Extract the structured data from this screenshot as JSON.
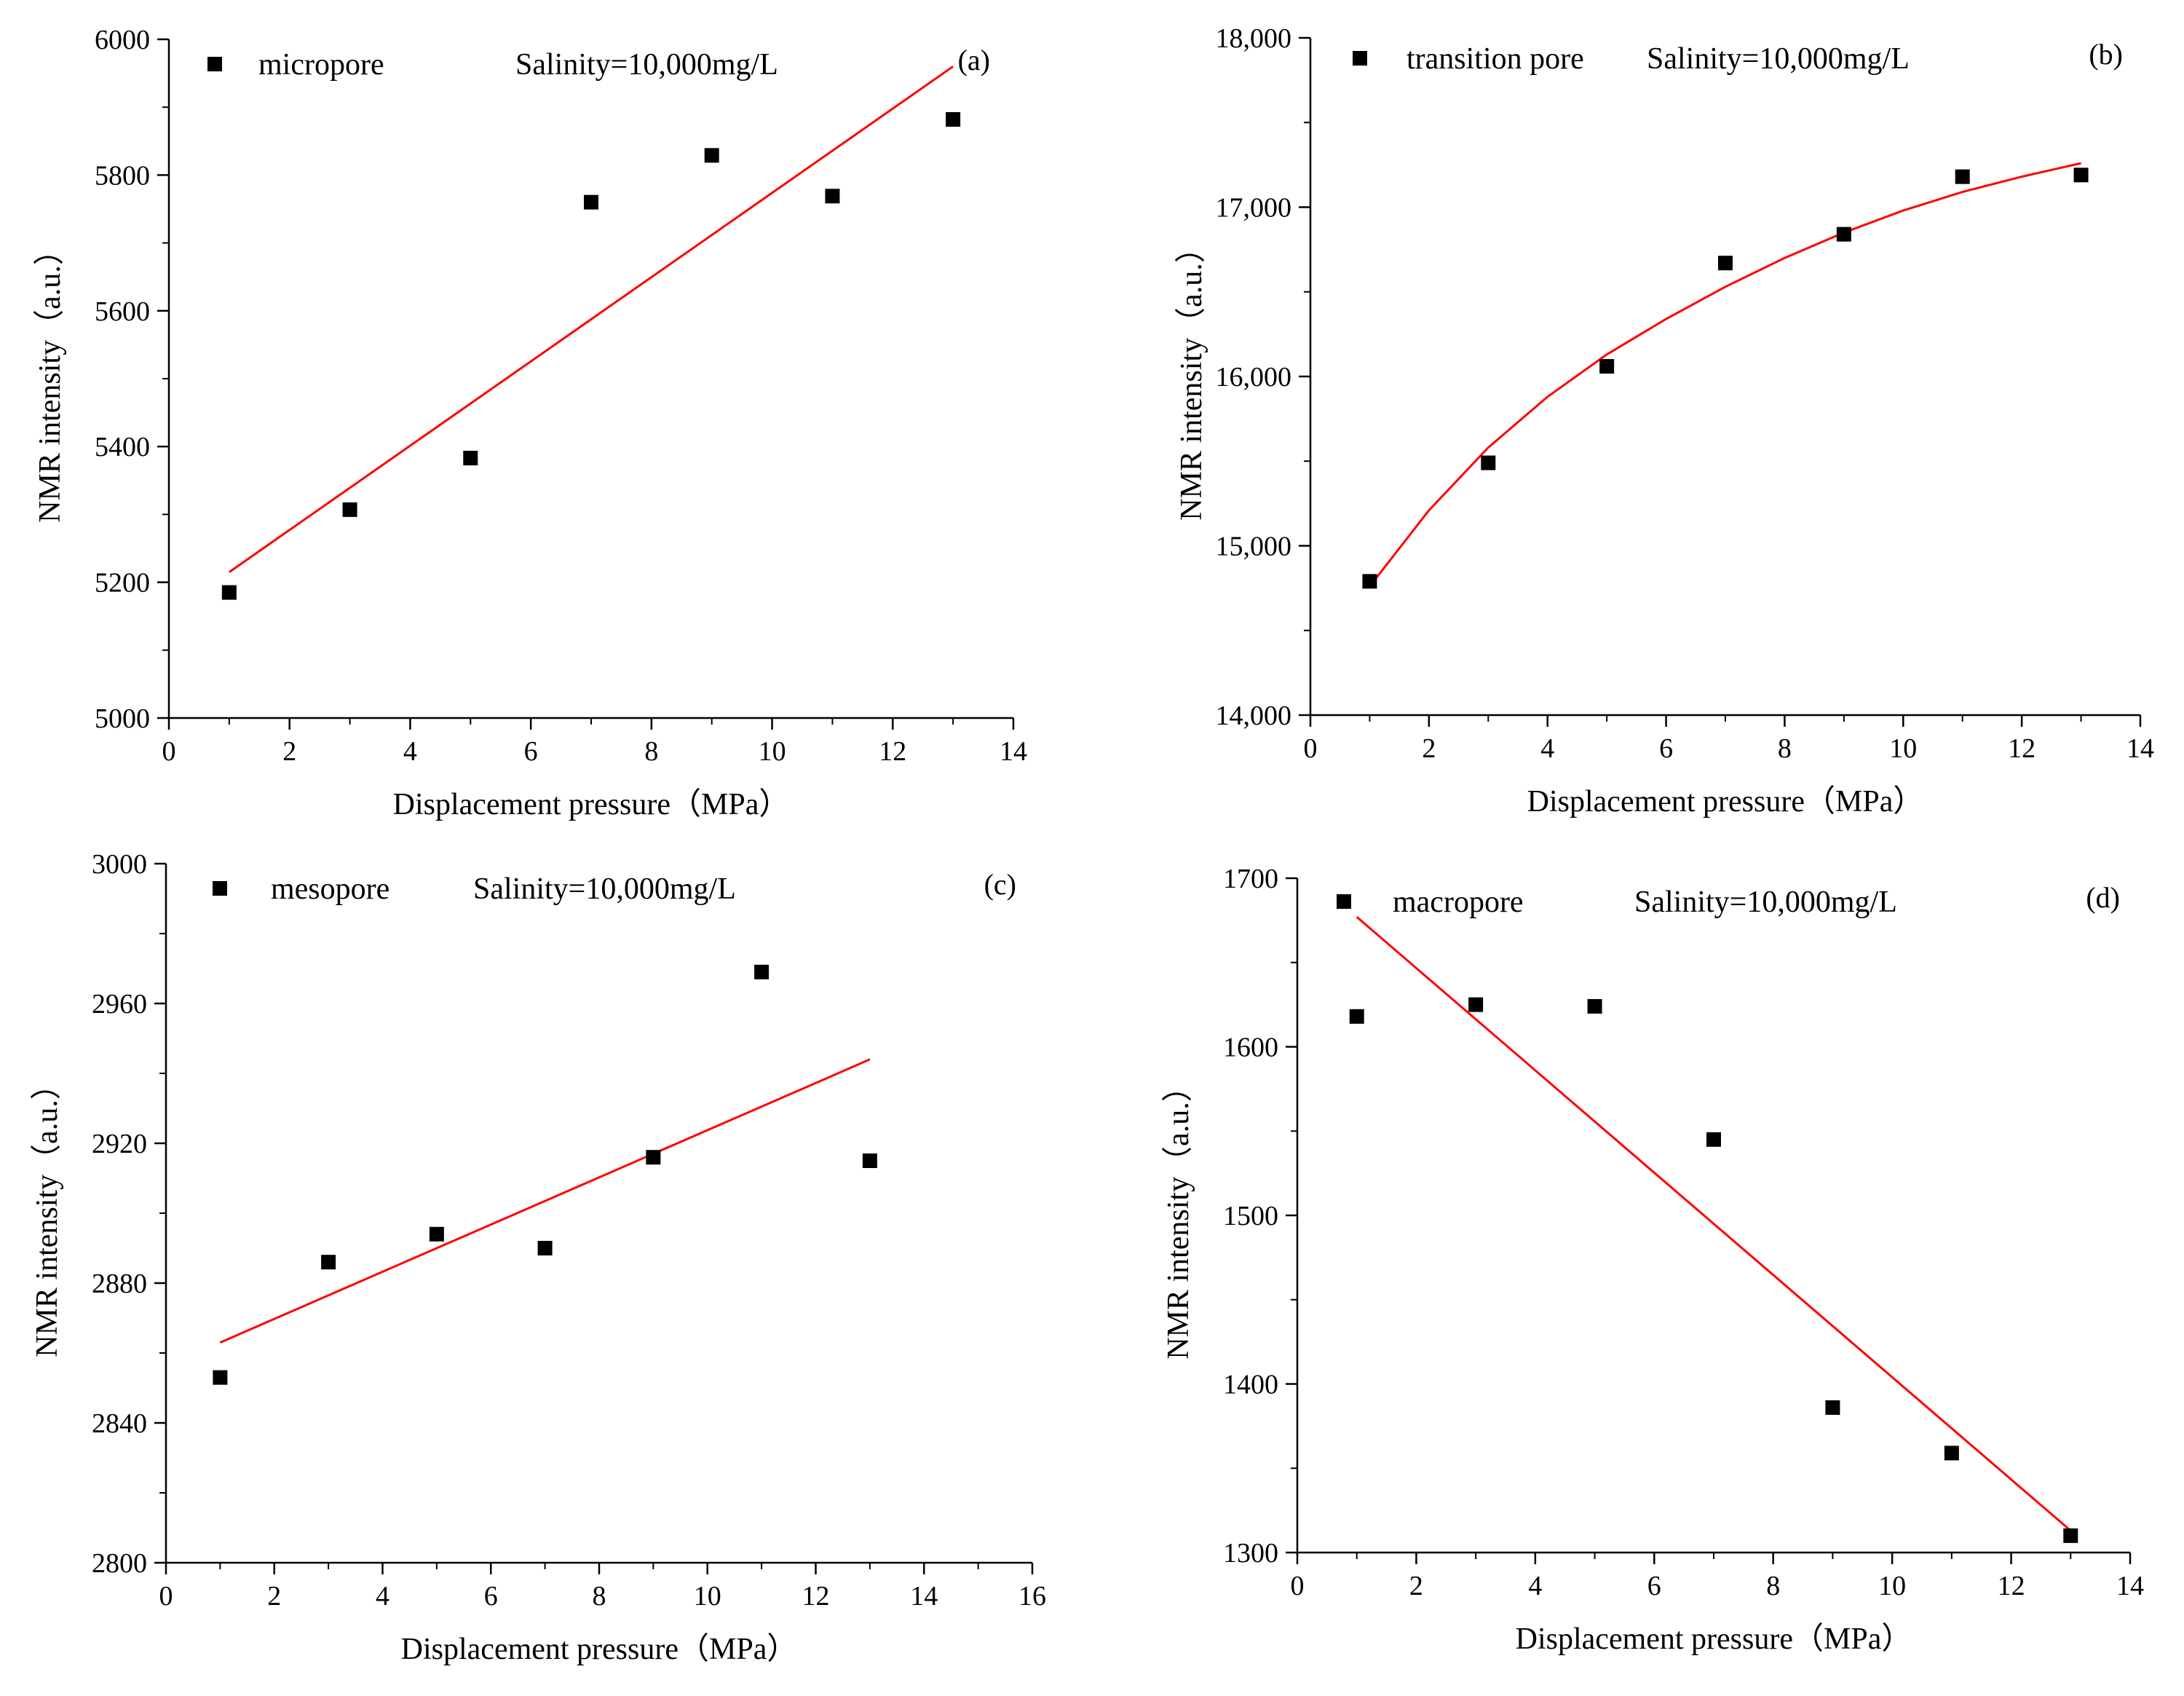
{
  "figure": {
    "panels": [
      "(a)",
      "(b)",
      "(c)",
      "(d)"
    ]
  },
  "chart_data": [
    {
      "type": "scatter",
      "id": "a",
      "panel_label": "(a)",
      "title": "",
      "legend_label": "micropore",
      "annotation": "Salinity=10,000mg/L",
      "xlabel": "Displacement pressure（MPa）",
      "ylabel": "NMR intensity（a.u.）",
      "xlim": [
        0,
        14
      ],
      "ylim": [
        5000,
        6000
      ],
      "x_ticks": [
        0,
        2,
        4,
        6,
        8,
        10,
        12,
        14
      ],
      "y_ticks": [
        5000,
        5200,
        5400,
        5600,
        5800,
        6000
      ],
      "x_tick_labels": [
        "0",
        "2",
        "4",
        "6",
        "8",
        "10",
        "12",
        "14"
      ],
      "y_tick_labels": [
        "5000",
        "5200",
        "5400",
        "5600",
        "5800",
        "6000"
      ],
      "series": [
        {
          "name": "micropore",
          "x": [
            1,
            3,
            5,
            7,
            9,
            11,
            13
          ],
          "y": [
            5185,
            5307,
            5383,
            5760,
            5829,
            5769,
            5882
          ]
        }
      ],
      "fit": {
        "type": "linear",
        "color": "#ff0000",
        "x": [
          1,
          13
        ],
        "y": [
          5215,
          5960
        ]
      },
      "grid": false
    },
    {
      "type": "scatter",
      "id": "b",
      "panel_label": "(b)",
      "title": "",
      "legend_label": "transition pore",
      "annotation": "Salinity=10,000mg/L",
      "xlabel": "Displacement pressure（MPa）",
      "ylabel": "NMR intensity（a.u.）",
      "xlim": [
        0,
        14
      ],
      "ylim": [
        14000,
        18000
      ],
      "x_ticks": [
        0,
        2,
        4,
        6,
        8,
        10,
        12,
        14
      ],
      "y_ticks": [
        14000,
        15000,
        16000,
        17000,
        18000
      ],
      "x_tick_labels": [
        "0",
        "2",
        "4",
        "6",
        "8",
        "10",
        "12",
        "14"
      ],
      "y_tick_labels": [
        "14,000",
        "15,000",
        "16,000",
        "17,000",
        "18,000"
      ],
      "series": [
        {
          "name": "transition pore",
          "x": [
            1,
            3,
            5,
            7,
            9,
            11,
            13
          ],
          "y": [
            14790,
            15490,
            16060,
            16670,
            16840,
            17180,
            17190
          ]
        }
      ],
      "fit": {
        "type": "curve",
        "color": "#ff0000",
        "x": [
          1,
          2,
          3,
          4,
          5,
          6,
          7,
          8,
          9,
          10,
          11,
          12,
          13
        ],
        "y": [
          14760,
          15210,
          15580,
          15880,
          16130,
          16340,
          16530,
          16700,
          16850,
          16980,
          17090,
          17180,
          17260
        ]
      },
      "grid": false
    },
    {
      "type": "scatter",
      "id": "c",
      "panel_label": "(c)",
      "title": "",
      "legend_label": "mesopore",
      "annotation": "Salinity=10,000mg/L",
      "xlabel": "Displacement pressure（MPa）",
      "ylabel": "NMR intensity（a.u.）",
      "xlim": [
        0,
        16
      ],
      "ylim": [
        2800,
        3000
      ],
      "x_ticks": [
        0,
        2,
        4,
        6,
        8,
        10,
        12,
        14,
        16
      ],
      "y_ticks": [
        2800,
        2840,
        2880,
        2920,
        2960,
        3000
      ],
      "x_tick_labels": [
        "0",
        "2",
        "4",
        "6",
        "8",
        "10",
        "12",
        "14",
        "16"
      ],
      "y_tick_labels": [
        "2800",
        "2840",
        "2880",
        "2920",
        "2960",
        "3000"
      ],
      "series": [
        {
          "name": "mesopore",
          "x": [
            1,
            3,
            5,
            7,
            9,
            11,
            13
          ],
          "y": [
            2853,
            2886,
            2894,
            2890,
            2916,
            2969,
            2915
          ]
        }
      ],
      "fit": {
        "type": "linear",
        "color": "#ff0000",
        "x": [
          1,
          13
        ],
        "y": [
          2863,
          2944
        ]
      },
      "grid": false
    },
    {
      "type": "scatter",
      "id": "d",
      "panel_label": "(d)",
      "title": "",
      "legend_label": "macropore",
      "annotation": "Salinity=10,000mg/L",
      "xlabel": "Displacement pressure（MPa）",
      "ylabel": "NMR intensity（a.u.）",
      "xlim": [
        0,
        14
      ],
      "ylim": [
        1300,
        1700
      ],
      "x_ticks": [
        0,
        2,
        4,
        6,
        8,
        10,
        12,
        14
      ],
      "y_ticks": [
        1300,
        1400,
        1500,
        1600,
        1700
      ],
      "x_tick_labels": [
        "0",
        "2",
        "4",
        "6",
        "8",
        "10",
        "12",
        "14"
      ],
      "y_tick_labels": [
        "1300",
        "1400",
        "1500",
        "1600",
        "1700"
      ],
      "series": [
        {
          "name": "macropore",
          "x": [
            1,
            3,
            5,
            7,
            9,
            11,
            13
          ],
          "y": [
            1618,
            1625,
            1624,
            1545,
            1386,
            1359,
            1310
          ]
        }
      ],
      "fit": {
        "type": "linear",
        "color": "#ff0000",
        "x": [
          1,
          13
        ],
        "y": [
          1677,
          1313
        ]
      },
      "grid": false
    }
  ]
}
